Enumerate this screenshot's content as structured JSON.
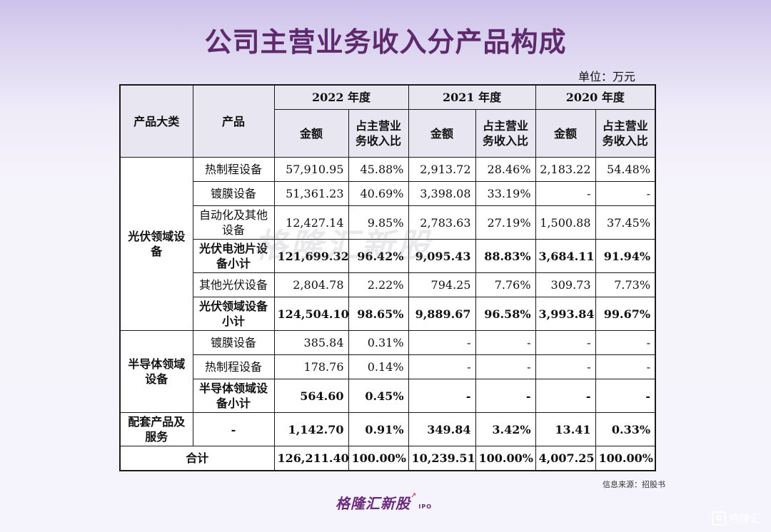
{
  "title": "公司主营业务收入分产品构成",
  "unit": "单位：万元",
  "source": "信息来源：招股书",
  "brand": "格隆汇新股",
  "brand_suffix": "IPO",
  "watermark_center": "格隆汇新股",
  "watermark_corner": "格隆汇",
  "colors": {
    "title": "#5e2a6d",
    "header_bg": "#e8e6f0",
    "background": "#eeeaf8"
  },
  "header": {
    "category": "产品大类",
    "product": "产品",
    "years": [
      "2022 年度",
      "2021 年度",
      "2020 年度"
    ],
    "amount": "金额",
    "ratio": "占主营业务收入比"
  },
  "chart_data": {
    "type": "table",
    "title": "公司主营业务收入分产品构成",
    "unit": "万元",
    "columns": [
      "产品大类",
      "产品",
      "2022 年度 金额",
      "2022 年度 占主营业务收入比",
      "2021 年度 金额",
      "2021 年度 占主营业务收入比",
      "2020 年度 金额",
      "2020 年度 占主营业务收入比"
    ],
    "groups": [
      {
        "category": "光伏领域设备",
        "rows": [
          {
            "product": "热制程设备",
            "bold": false,
            "values": [
              "57,910.95",
              "45.88%",
              "2,913.72",
              "28.46%",
              "2,183.22",
              "54.48%"
            ]
          },
          {
            "product": "镀膜设备",
            "bold": false,
            "values": [
              "51,361.23",
              "40.69%",
              "3,398.08",
              "33.19%",
              "-",
              "-"
            ]
          },
          {
            "product": "自动化及其他设备",
            "bold": false,
            "values": [
              "12,427.14",
              "9.85%",
              "2,783.63",
              "27.19%",
              "1,500.88",
              "37.45%"
            ]
          },
          {
            "product": "光伏电池片设备小计",
            "bold": true,
            "values": [
              "121,699.32",
              "96.42%",
              "9,095.43",
              "88.83%",
              "3,684.11",
              "91.94%"
            ]
          },
          {
            "product": "其他光伏设备",
            "bold": false,
            "values": [
              "2,804.78",
              "2.22%",
              "794.25",
              "7.76%",
              "309.73",
              "7.73%"
            ]
          },
          {
            "product": "光伏领域设备小计",
            "bold": true,
            "values": [
              "124,504.10",
              "98.65%",
              "9,889.67",
              "96.58%",
              "3,993.84",
              "99.67%"
            ]
          }
        ]
      },
      {
        "category": "半导体领域设备",
        "rows": [
          {
            "product": "镀膜设备",
            "bold": false,
            "values": [
              "385.84",
              "0.31%",
              "-",
              "-",
              "-",
              "-"
            ]
          },
          {
            "product": "热制程设备",
            "bold": false,
            "values": [
              "178.76",
              "0.14%",
              "-",
              "-",
              "-",
              "-"
            ]
          },
          {
            "product": "半导体领域设备小计",
            "bold": true,
            "values": [
              "564.60",
              "0.45%",
              "-",
              "-",
              "-",
              "-"
            ]
          }
        ]
      },
      {
        "category": "配套产品及服务",
        "rows": [
          {
            "product": "-",
            "bold": true,
            "values": [
              "1,142.70",
              "0.91%",
              "349.84",
              "3.42%",
              "13.41",
              "0.33%"
            ]
          }
        ]
      }
    ],
    "total": {
      "label": "合计",
      "values": [
        "126,211.40",
        "100.00%",
        "10,239.51",
        "100.00%",
        "4,007.25",
        "100.00%"
      ]
    }
  }
}
